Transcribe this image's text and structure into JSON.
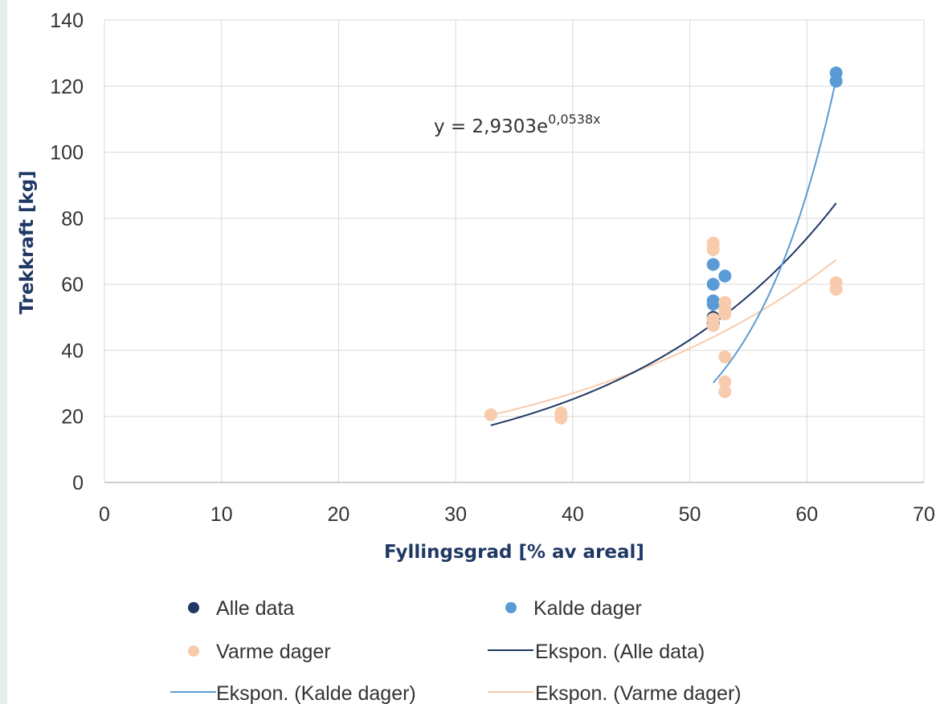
{
  "chart_data": {
    "type": "scatter",
    "title": "",
    "xlabel": "Fyllingsgrad [% av areal]",
    "ylabel": "Trekkraft [kg]",
    "xlim": [
      0,
      70
    ],
    "ylim": [
      0,
      140
    ],
    "x_ticks": [
      "0",
      "10",
      "20",
      "30",
      "40",
      "50",
      "60",
      "70"
    ],
    "y_ticks": [
      "0",
      "20",
      "40",
      "60",
      "80",
      "100",
      "120",
      "140"
    ],
    "grid": true,
    "legend_position": "bottom",
    "series": [
      {
        "name": "Alle data",
        "color": "#1f3864",
        "points": [
          [
            52,
            50
          ],
          [
            52,
            48
          ]
        ]
      },
      {
        "name": "Kalde dager",
        "color": "#5b9bd5",
        "points": [
          [
            52,
            66
          ],
          [
            52,
            60
          ],
          [
            52,
            55
          ],
          [
            52,
            54
          ],
          [
            53,
            62.5
          ],
          [
            62.5,
            124
          ],
          [
            62.5,
            121.5
          ]
        ]
      },
      {
        "name": "Varme dager",
        "color": "#f8cbad",
        "points": [
          [
            33,
            20.5
          ],
          [
            39,
            21
          ],
          [
            39,
            19.5
          ],
          [
            52,
            72.5
          ],
          [
            52,
            70.5
          ],
          [
            52,
            49.5
          ],
          [
            52,
            47.5
          ],
          [
            53,
            54.5
          ],
          [
            53,
            52.5
          ],
          [
            53,
            51
          ],
          [
            53,
            38
          ],
          [
            53,
            30.5
          ],
          [
            53,
            27.5
          ],
          [
            62.5,
            60.5
          ],
          [
            62.5,
            58.5
          ]
        ]
      }
    ],
    "trendlines": [
      {
        "name": "Ekspon. (Alle data)",
        "color": "#1f3864",
        "a": 2.9303,
        "b": 0.0538,
        "x_range": [
          33,
          62.5
        ]
      },
      {
        "name": "Ekspon. (Kalde dager)",
        "color": "#5b9bd5",
        "a": 0.0296,
        "b": 0.1332,
        "x_range": [
          52,
          62.5
        ]
      },
      {
        "name": "Ekspon. (Varme dager)",
        "color": "#f8cbad",
        "a": 5.33,
        "b": 0.0406,
        "x_range": [
          33,
          62.5
        ]
      }
    ],
    "annotations": [
      {
        "text": "y = 2,9303e",
        "superscript": "0,0538x"
      }
    ]
  }
}
